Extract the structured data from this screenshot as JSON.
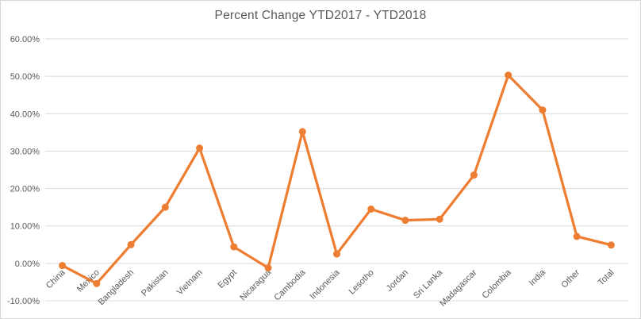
{
  "chart_data": {
    "type": "line",
    "title": "Percent Change YTD2017 - YTD2018",
    "categories": [
      "China",
      "Mexico",
      "Bangladesh",
      "Pakistan",
      "Vietnam",
      "Egypt",
      "Nicaragua",
      "Cambodia",
      "Indonesia",
      "Lesotho",
      "Jordan",
      "Sri Lanka",
      "Madagascar",
      "Colombia",
      "India",
      "Other",
      "Total"
    ],
    "series": [
      {
        "name": "Percent Change YTD2017 - YTD2018",
        "values": [
          -0.6,
          -5.4,
          5.0,
          15.0,
          30.8,
          4.4,
          -1.2,
          35.2,
          2.5,
          14.5,
          11.5,
          11.8,
          23.6,
          50.3,
          41.0,
          7.2,
          4.9
        ]
      }
    ],
    "xlabel": "",
    "ylabel": "",
    "ylim": [
      -10,
      60
    ],
    "ytick_step": 10,
    "ytick_labels": [
      "-10.00%",
      "0.00%",
      "10.00%",
      "20.00%",
      "30.00%",
      "40.00%",
      "50.00%",
      "60.00%"
    ],
    "grid": true,
    "legend_position": "none",
    "colors": {
      "series": "#ED7D31",
      "gridline": "#D9D9D9",
      "axis_label": "#595959",
      "title": "#595959",
      "background": "#FFFFFF",
      "frame_border": "#D7D7D7"
    },
    "marker": "circle"
  }
}
